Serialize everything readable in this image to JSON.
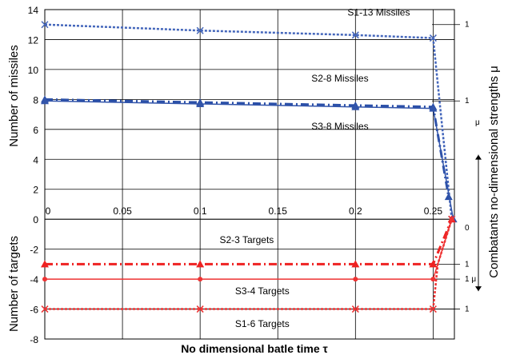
{
  "chart_data": {
    "type": "line",
    "xlabel": "No dimensional batle time τ",
    "ylabel_top": "Number of missiles",
    "ylabel_bottom": "Number of targets",
    "ylabel_right": "Combatants no-dimensional strengths   μ",
    "xlim": [
      0,
      0.28
    ],
    "ylim": [
      -8,
      14
    ],
    "grid": true,
    "x_ticks": [
      "0",
      "0.05",
      "0.1",
      "0.15",
      "0.2",
      "0.25"
    ],
    "y_ticks": [
      "14",
      "12",
      "10",
      "8",
      "6",
      "4",
      "2",
      "0",
      "-2",
      "-4",
      "-6",
      "-8"
    ],
    "series": [
      {
        "name": "S1-13 Missiles",
        "color": "#4466bb",
        "style": "dotted",
        "marker": "x",
        "x": [
          0,
          0.1,
          0.2,
          0.25,
          0.256,
          0.262
        ],
        "y": [
          13,
          12.6,
          12.3,
          12.1,
          6,
          0
        ]
      },
      {
        "name": "S2-8 Missiles",
        "color": "#2a4fa8",
        "style": "dashdot",
        "marker": "triangle",
        "x": [
          0,
          0.1,
          0.2,
          0.25,
          0.26
        ],
        "y": [
          8,
          7.8,
          7.6,
          7.5,
          1.5
        ]
      },
      {
        "name": "S3-8 Missiles",
        "color": "#3355aa",
        "style": "solid",
        "marker": "triangle",
        "x": [
          0,
          0.1,
          0.2,
          0.25,
          0.263
        ],
        "y": [
          7.9,
          7.7,
          7.5,
          7.4,
          0
        ]
      },
      {
        "name": "S1-6 Targets",
        "color": "#ee3333",
        "style": "dotted",
        "marker": "x",
        "x": [
          0,
          0.1,
          0.2,
          0.25,
          0.253,
          0.262
        ],
        "y": [
          -6,
          -6,
          -6,
          -6,
          -3,
          0
        ]
      },
      {
        "name": "S2-3 Targets",
        "color": "#ee2222",
        "style": "dashdot",
        "marker": "triangle",
        "x": [
          0,
          0.1,
          0.2,
          0.25,
          0.262
        ],
        "y": [
          -3,
          -3,
          -3,
          -3,
          0
        ]
      },
      {
        "name": "S3-4 Targets",
        "color": "#ee3333",
        "style": "solid",
        "marker": "dot",
        "x": [
          0,
          0.1,
          0.2,
          0.25,
          0.262
        ],
        "y": [
          -4,
          -4,
          -4,
          -4,
          0
        ]
      }
    ],
    "right_reference_lines": [
      {
        "y": 13,
        "label": "1"
      },
      {
        "y": 7.9,
        "label": "1"
      },
      {
        "y": -3,
        "label": "1"
      },
      {
        "y": -4,
        "label": "1  μ"
      },
      {
        "y": -6,
        "label": "1"
      }
    ],
    "right_markers": {
      "zero_label": "0",
      "mu_label": "μ"
    }
  }
}
